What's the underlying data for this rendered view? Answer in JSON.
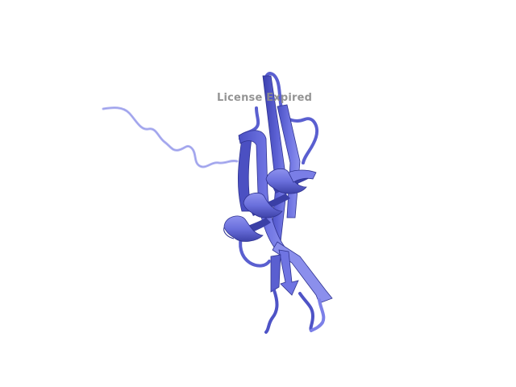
{
  "viewer": {
    "background_color": "#ffffff",
    "ribbon_color": "#6b70e0",
    "ribbon_dark": "#3e43b2",
    "ribbon_light": "#9ea2f0",
    "tail_color": "#a9acee",
    "watermark_text": "License Expired",
    "watermark_color": "#8c8c8c"
  }
}
